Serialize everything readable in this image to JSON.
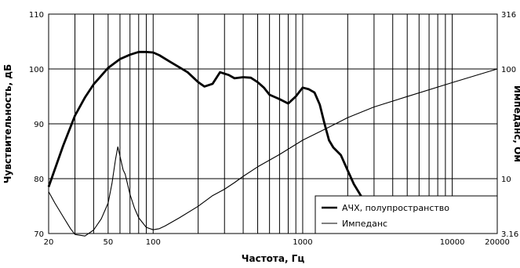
{
  "chart_data": {
    "type": "line",
    "xlabel": "Частота, Гц",
    "ylabel": "Чувствительность, дБ",
    "y2label": "Импеданс, Ом",
    "x_scale": "log",
    "xlim": [
      20,
      20000
    ],
    "ylim": [
      70,
      110
    ],
    "y2lim": [
      3.16,
      316
    ],
    "y2_scale": "log",
    "grid": true,
    "legend_position": "bottom-right",
    "x_ticks": [
      "20",
      "50",
      "100",
      "1000",
      "10000",
      "20000"
    ],
    "y_ticks": [
      "70",
      "80",
      "90",
      "100",
      "110"
    ],
    "y2_ticks": [
      "3.16",
      "10",
      "100",
      "316"
    ],
    "series": [
      {
        "name": "АЧХ, полупространство",
        "axis": "left",
        "color": "#000000",
        "x": [
          20,
          25,
          30,
          35,
          40,
          50,
          60,
          70,
          80,
          90,
          100,
          110,
          130,
          150,
          170,
          200,
          220,
          250,
          280,
          320,
          350,
          400,
          450,
          500,
          550,
          600,
          700,
          800,
          900,
          1000,
          1100,
          1200,
          1300,
          1400,
          1500,
          1600,
          1800,
          2000,
          2200,
          2500,
          2800
        ],
        "y": [
          78.5,
          86,
          91.5,
          94.8,
          97.2,
          100.2,
          101.8,
          102.6,
          103.1,
          103.1,
          103.0,
          102.5,
          101.3,
          100.3,
          99.4,
          97.6,
          96.8,
          97.3,
          99.4,
          98.9,
          98.3,
          98.5,
          98.4,
          97.6,
          96.6,
          95.3,
          94.5,
          93.7,
          95.0,
          96.6,
          96.3,
          95.7,
          93.5,
          90.0,
          87.0,
          85.7,
          84.3,
          81.5,
          79.0,
          76.5,
          72.8
        ]
      },
      {
        "name": "Импеданс",
        "axis": "right",
        "color": "#000000",
        "x": [
          20,
          22,
          25,
          28,
          30,
          35,
          40,
          45,
          50,
          53,
          56,
          58,
          60,
          63,
          65,
          70,
          75,
          80,
          90,
          100,
          110,
          120,
          150,
          200,
          250,
          300,
          350,
          400,
          500,
          700,
          1000,
          1500,
          2000,
          3000,
          5000,
          10000,
          20000
        ],
        "y": [
          7.6,
          6.0,
          4.5,
          3.5,
          3.1,
          3.0,
          3.4,
          4.3,
          6.0,
          9.0,
          15.0,
          19.5,
          16.0,
          12.0,
          11.0,
          7.2,
          5.4,
          4.4,
          3.6,
          3.42,
          3.5,
          3.7,
          4.4,
          5.6,
          7.0,
          8.0,
          9.2,
          10.5,
          12.8,
          16.6,
          22.4,
          29.5,
          36.0,
          45.0,
          56.0,
          75.0,
          100.0
        ]
      }
    ]
  }
}
